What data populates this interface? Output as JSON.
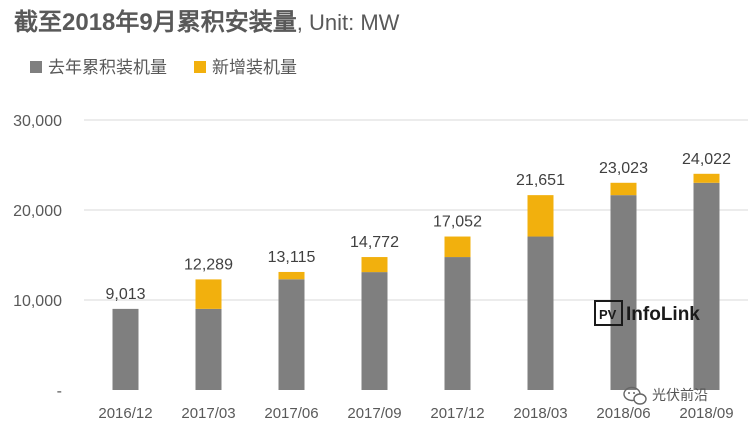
{
  "chart_data": {
    "type": "bar",
    "stacked": true,
    "title": "截至2018年9月累积安装量, Unit: MW",
    "title_bold": "截至2018年9月累积安装量",
    "title_rest": ", Unit: MW",
    "categories": [
      "2016/12",
      "2017/03",
      "2017/06",
      "2017/09",
      "2017/12",
      "2018/03",
      "2018/06",
      "2018/09"
    ],
    "series": [
      {
        "name": "去年累积装机量",
        "color": "#7f7f7f",
        "values": [
          9013,
          9013,
          12300,
          13100,
          14772,
          17052,
          21651,
          23023
        ]
      },
      {
        "name": "新增装机量",
        "color": "#f2b00d",
        "values": [
          0,
          3276,
          815,
          1672,
          2280,
          4599,
          1372,
          999
        ]
      }
    ],
    "totals_labels": [
      "9,013",
      "12,289",
      "13,115",
      "14,772",
      "17,052",
      "21,651",
      "23,023",
      "24,022"
    ],
    "y_ticks": [
      {
        "value": 0,
        "label": "-"
      },
      {
        "value": 10000,
        "label": "10,000"
      },
      {
        "value": 20000,
        "label": "20,000"
      },
      {
        "value": 30000,
        "label": "30,000"
      }
    ],
    "ylim": [
      0,
      30000
    ],
    "grid": true,
    "legend": "top-left"
  },
  "logo": {
    "pv": "PV",
    "name": "InfoLink"
  },
  "watermark": {
    "text": "光伏前沿"
  }
}
